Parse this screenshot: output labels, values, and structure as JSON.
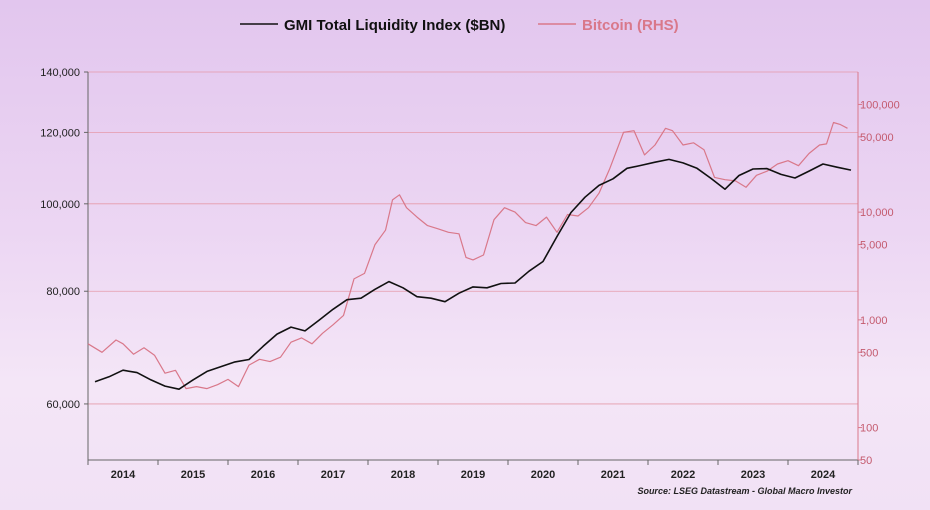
{
  "chart_data": {
    "type": "line",
    "title": "",
    "legend": {
      "placement": "top-center",
      "entries": [
        {
          "label": "GMI Total Liquidity Index ($BN)",
          "color": "#111111"
        },
        {
          "label": "Bitcoin (RHS)",
          "color": "#d9788a"
        }
      ]
    },
    "source": "Source: LSEG Datastream - Global Macro Investor",
    "x_axis": {
      "range": [
        2013.5,
        2024.5
      ],
      "ticks": [
        2014,
        2015,
        2016,
        2017,
        2018,
        2019,
        2020,
        2021,
        2022,
        2023,
        2024
      ],
      "tick_labels": [
        "2014",
        "2015",
        "2016",
        "2017",
        "2018",
        "2019",
        "2020",
        "2021",
        "2022",
        "2023",
        "2024"
      ]
    },
    "y_left": {
      "scale": "log",
      "range": [
        52000,
        140000
      ],
      "ticks": [
        60000,
        80000,
        100000,
        120000,
        140000
      ],
      "tick_labels": [
        "60,000",
        "80,000",
        "100,000",
        "120,000",
        "140,000"
      ],
      "gridlines": true
    },
    "y_right": {
      "scale": "log",
      "range": [
        50,
        200000
      ],
      "ticks": [
        50,
        100,
        500,
        1000,
        5000,
        10000,
        50000,
        100000
      ],
      "tick_labels": [
        "50",
        "100",
        "500",
        "1,000",
        "5,000",
        "10,000",
        "50,000",
        "100,000"
      ]
    },
    "series": [
      {
        "name": "GMI Total Liquidity Index ($BN)",
        "axis": "left",
        "color": "#111111",
        "x": [
          2013.6,
          2013.8,
          2014.0,
          2014.2,
          2014.4,
          2014.6,
          2014.8,
          2015.0,
          2015.2,
          2015.4,
          2015.6,
          2015.8,
          2016.0,
          2016.2,
          2016.4,
          2016.6,
          2016.8,
          2017.0,
          2017.2,
          2017.4,
          2017.6,
          2017.8,
          2018.0,
          2018.2,
          2018.4,
          2018.6,
          2018.8,
          2019.0,
          2019.2,
          2019.4,
          2019.6,
          2019.8,
          2020.0,
          2020.2,
          2020.4,
          2020.6,
          2020.8,
          2021.0,
          2021.2,
          2021.4,
          2021.6,
          2021.8,
          2022.0,
          2022.2,
          2022.4,
          2022.6,
          2022.8,
          2023.0,
          2023.2,
          2023.4,
          2023.6,
          2023.8,
          2024.0,
          2024.2,
          2024.4
        ],
        "values": [
          63500,
          64300,
          65400,
          65000,
          63800,
          62800,
          62300,
          63800,
          65200,
          66000,
          66800,
          67200,
          69500,
          71700,
          73000,
          72300,
          74300,
          76400,
          78300,
          78600,
          80400,
          82000,
          80700,
          78900,
          78600,
          77900,
          79600,
          80900,
          80700,
          81600,
          81700,
          84200,
          86300,
          92000,
          97800,
          101700,
          104800,
          106600,
          109500,
          110300,
          111200,
          112000,
          111000,
          109500,
          106700,
          103800,
          107500,
          109300,
          109400,
          107800,
          106800,
          108700,
          110700,
          109800,
          109000
        ]
      },
      {
        "name": "Bitcoin (RHS)",
        "axis": "right",
        "color": "#d9788a",
        "x": [
          2013.5,
          2013.7,
          2013.9,
          2014.0,
          2014.15,
          2014.3,
          2014.45,
          2014.6,
          2014.75,
          2014.9,
          2015.05,
          2015.2,
          2015.35,
          2015.5,
          2015.65,
          2015.8,
          2015.95,
          2016.1,
          2016.25,
          2016.4,
          2016.55,
          2016.7,
          2016.85,
          2017.0,
          2017.15,
          2017.3,
          2017.45,
          2017.6,
          2017.75,
          2017.85,
          2017.95,
          2018.05,
          2018.2,
          2018.35,
          2018.5,
          2018.65,
          2018.8,
          2018.9,
          2019.0,
          2019.15,
          2019.3,
          2019.45,
          2019.6,
          2019.75,
          2019.9,
          2020.05,
          2020.2,
          2020.35,
          2020.5,
          2020.65,
          2020.8,
          2020.95,
          2021.05,
          2021.15,
          2021.3,
          2021.45,
          2021.6,
          2021.75,
          2021.85,
          2022.0,
          2022.15,
          2022.3,
          2022.45,
          2022.6,
          2022.75,
          2022.9,
          2023.05,
          2023.2,
          2023.35,
          2023.5,
          2023.65,
          2023.8,
          2023.95,
          2024.05,
          2024.15,
          2024.25,
          2024.35
        ],
        "values": [
          600,
          500,
          650,
          600,
          480,
          550,
          470,
          320,
          340,
          230,
          240,
          230,
          250,
          280,
          240,
          380,
          430,
          410,
          450,
          620,
          680,
          600,
          750,
          900,
          1100,
          2400,
          2700,
          5000,
          6800,
          13000,
          14500,
          11000,
          9000,
          7500,
          7000,
          6500,
          6300,
          3800,
          3600,
          4000,
          8500,
          11000,
          10000,
          8000,
          7500,
          9000,
          6500,
          9500,
          9200,
          11000,
          15000,
          25000,
          37000,
          55000,
          57000,
          34000,
          42000,
          60000,
          57000,
          42000,
          44000,
          38000,
          21000,
          20000,
          19500,
          17000,
          22000,
          24000,
          28000,
          30000,
          27000,
          35000,
          42000,
          43000,
          68000,
          65000,
          60000
        ]
      }
    ]
  }
}
